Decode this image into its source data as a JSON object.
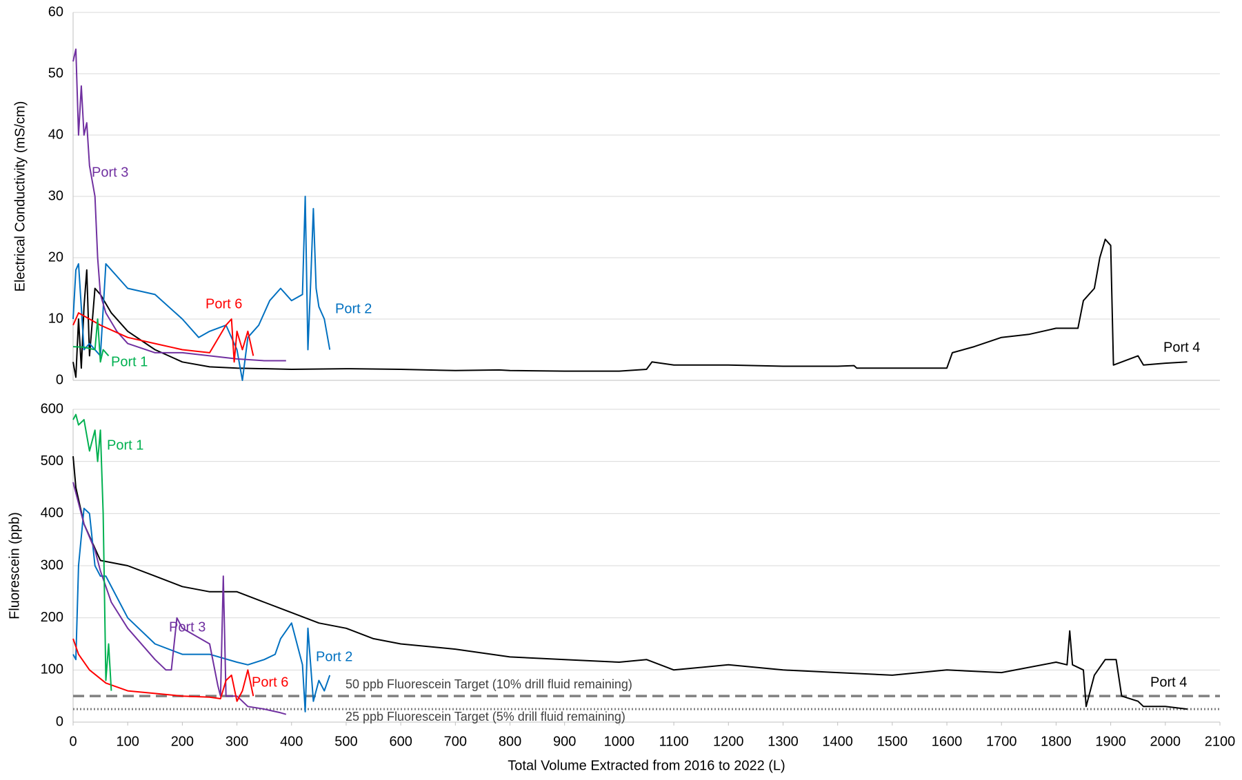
{
  "chart_data": [
    {
      "type": "line",
      "ylabel": "Electrical Conductivity (mS/cm)",
      "xlim": [
        0,
        2100
      ],
      "ylim": [
        0,
        60
      ],
      "yticks": [
        0,
        10,
        20,
        30,
        40,
        50,
        60
      ],
      "grid": true,
      "series": [
        {
          "name": "Port 4",
          "color": "#000000",
          "x": [
            0,
            5,
            10,
            15,
            20,
            25,
            30,
            40,
            50,
            70,
            100,
            150,
            200,
            250,
            300,
            400,
            500,
            600,
            700,
            780,
            800,
            900,
            1000,
            1050,
            1060,
            1100,
            1200,
            1300,
            1400,
            1430,
            1435,
            1500,
            1600,
            1610,
            1650,
            1700,
            1750,
            1800,
            1840,
            1850,
            1870,
            1880,
            1890,
            1900,
            1905,
            1950,
            1960,
            2000,
            2040
          ],
          "values": [
            3,
            0.5,
            10,
            2,
            12,
            18,
            4,
            15,
            14,
            11,
            8,
            5,
            3,
            2.2,
            2,
            1.8,
            1.9,
            1.8,
            1.6,
            1.7,
            1.6,
            1.5,
            1.5,
            1.8,
            3,
            2.5,
            2.5,
            2.3,
            2.3,
            2.4,
            2,
            2,
            2,
            4.5,
            5.5,
            7,
            7.5,
            8.5,
            8.5,
            13,
            15,
            20,
            23,
            22,
            2.5,
            4,
            2.5,
            2.8,
            3
          ]
        },
        {
          "name": "Port 2",
          "color": "#0070c0",
          "x": [
            0,
            5,
            10,
            20,
            30,
            50,
            60,
            100,
            150,
            200,
            230,
            250,
            280,
            300,
            310,
            320,
            330,
            340,
            360,
            380,
            400,
            420,
            425,
            430,
            435,
            440,
            445,
            450,
            460,
            470
          ],
          "values": [
            10,
            18,
            19,
            5,
            6,
            4,
            19,
            15,
            14,
            10,
            7,
            8,
            9,
            5,
            0,
            7,
            8,
            9,
            13,
            15,
            13,
            14,
            30,
            5,
            16,
            28,
            15,
            12,
            10,
            5
          ]
        },
        {
          "name": "Port 3",
          "color": "#7030a0",
          "x": [
            0,
            5,
            10,
            15,
            20,
            25,
            30,
            40,
            45,
            50,
            60,
            80,
            100,
            150,
            200,
            250,
            300,
            350,
            390
          ],
          "values": [
            52,
            54,
            40,
            48,
            40,
            42,
            35,
            30,
            20,
            14,
            11,
            8,
            6,
            4.5,
            4.5,
            4,
            3.5,
            3.2,
            3.2
          ]
        },
        {
          "name": "Port 6",
          "color": "#ff0000",
          "x": [
            0,
            10,
            50,
            100,
            150,
            200,
            250,
            280,
            290,
            295,
            300,
            310,
            320,
            330
          ],
          "values": [
            9,
            11,
            9,
            7,
            6,
            5,
            4.5,
            9,
            10,
            3,
            8,
            5,
            8,
            4
          ]
        },
        {
          "name": "Port 1",
          "color": "#00b050",
          "x": [
            0,
            20,
            40,
            45,
            50,
            55,
            60,
            65
          ],
          "values": [
            5.5,
            5.4,
            5,
            10,
            3,
            5,
            4.5,
            4
          ]
        }
      ]
    },
    {
      "type": "line",
      "ylabel": "Fluorescein (ppb)",
      "xlabel": "Total Volume Extracted from 2016 to 2022 (L)",
      "xlim": [
        0,
        2100
      ],
      "xticks": [
        0,
        100,
        200,
        300,
        400,
        500,
        600,
        700,
        800,
        900,
        1000,
        1100,
        1200,
        1300,
        1400,
        1500,
        1600,
        1700,
        1800,
        1900,
        2000,
        2100
      ],
      "ylim": [
        0,
        600
      ],
      "yticks": [
        0,
        100,
        200,
        300,
        400,
        500,
        600
      ],
      "grid": true,
      "reference_lines": [
        {
          "value": 50,
          "label": "50 ppb Fluorescein Target (10% drill fluid remaining)",
          "style": "dashed",
          "color": "#808080"
        },
        {
          "value": 25,
          "label": "25 ppb Fluorescein Target (5% drill fluid remaining)",
          "style": "dotted",
          "color": "#808080"
        }
      ],
      "series": [
        {
          "name": "Port 4",
          "color": "#000000",
          "x": [
            0,
            5,
            20,
            50,
            100,
            150,
            200,
            250,
            300,
            350,
            400,
            450,
            500,
            550,
            600,
            700,
            800,
            900,
            1000,
            1050,
            1100,
            1200,
            1300,
            1400,
            1500,
            1600,
            1700,
            1800,
            1820,
            1825,
            1830,
            1850,
            1855,
            1870,
            1890,
            1910,
            1920,
            1950,
            1960,
            2000,
            2040
          ],
          "values": [
            510,
            450,
            380,
            310,
            300,
            280,
            260,
            250,
            250,
            230,
            210,
            190,
            180,
            160,
            150,
            140,
            125,
            120,
            115,
            120,
            100,
            110,
            100,
            95,
            90,
            100,
            95,
            115,
            110,
            175,
            110,
            100,
            30,
            90,
            120,
            120,
            50,
            40,
            30,
            30,
            25
          ]
        },
        {
          "name": "Port 2",
          "color": "#0070c0",
          "x": [
            0,
            5,
            10,
            20,
            30,
            40,
            50,
            60,
            100,
            150,
            200,
            250,
            300,
            320,
            350,
            370,
            380,
            400,
            410,
            420,
            425,
            430,
            440,
            450,
            460,
            470
          ],
          "values": [
            130,
            120,
            300,
            410,
            400,
            300,
            280,
            280,
            200,
            150,
            130,
            130,
            115,
            110,
            120,
            130,
            160,
            190,
            150,
            110,
            20,
            180,
            40,
            80,
            60,
            90
          ]
        },
        {
          "name": "Port 3",
          "color": "#7030a0",
          "x": [
            0,
            10,
            20,
            40,
            50,
            70,
            100,
            150,
            170,
            180,
            190,
            200,
            250,
            265,
            270,
            275,
            280,
            300,
            320,
            350,
            380,
            390
          ],
          "values": [
            460,
            420,
            380,
            330,
            290,
            230,
            180,
            120,
            100,
            100,
            200,
            180,
            150,
            70,
            50,
            280,
            50,
            50,
            30,
            25,
            18,
            15
          ]
        },
        {
          "name": "Port 6",
          "color": "#ff0000",
          "x": [
            0,
            10,
            30,
            60,
            100,
            150,
            200,
            250,
            270,
            280,
            290,
            300,
            310,
            320,
            330
          ],
          "values": [
            160,
            130,
            100,
            75,
            60,
            55,
            50,
            48,
            45,
            80,
            90,
            40,
            60,
            100,
            50
          ]
        },
        {
          "name": "Port 1",
          "color": "#00b050",
          "x": [
            0,
            5,
            10,
            20,
            30,
            40,
            45,
            50,
            55,
            60,
            65,
            70
          ],
          "values": [
            580,
            590,
            570,
            580,
            520,
            560,
            500,
            560,
            400,
            80,
            150,
            60
          ]
        }
      ]
    }
  ]
}
